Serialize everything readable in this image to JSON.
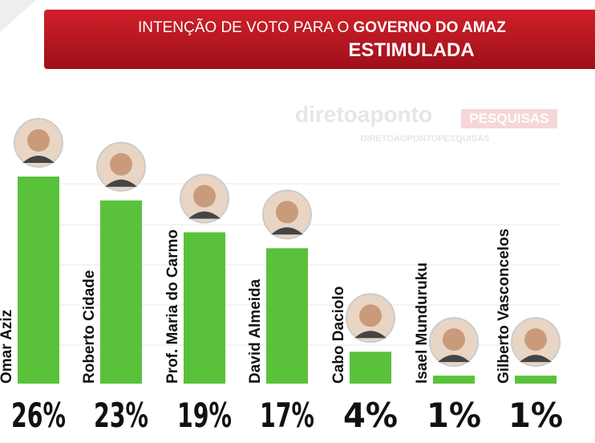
{
  "chart_data": {
    "type": "bar",
    "title": [
      "INTENÇÃO DE VOTO PARA O",
      "GOVERNO DO AMAZ"
    ],
    "subtitle": "ESTIMULADA",
    "watermark": [
      "diretoaponto",
      "PESQUISAS",
      "DIRETOAOPONTOPESQUISAS"
    ],
    "categories": [
      "Omar Aziz",
      "Roberto Cidade",
      "Prof. Maria do Carmo",
      "David Almeida",
      "Cabo Daciolo",
      "Isael Munduruku",
      "Gilberto Vasconcelos"
    ],
    "values": [
      26,
      23,
      19,
      17,
      4,
      1,
      1
    ],
    "value_labels": [
      "26%",
      "23%",
      "19%",
      "17%",
      "4%",
      "1%",
      "1%"
    ],
    "color": "#5ac13a"
  }
}
